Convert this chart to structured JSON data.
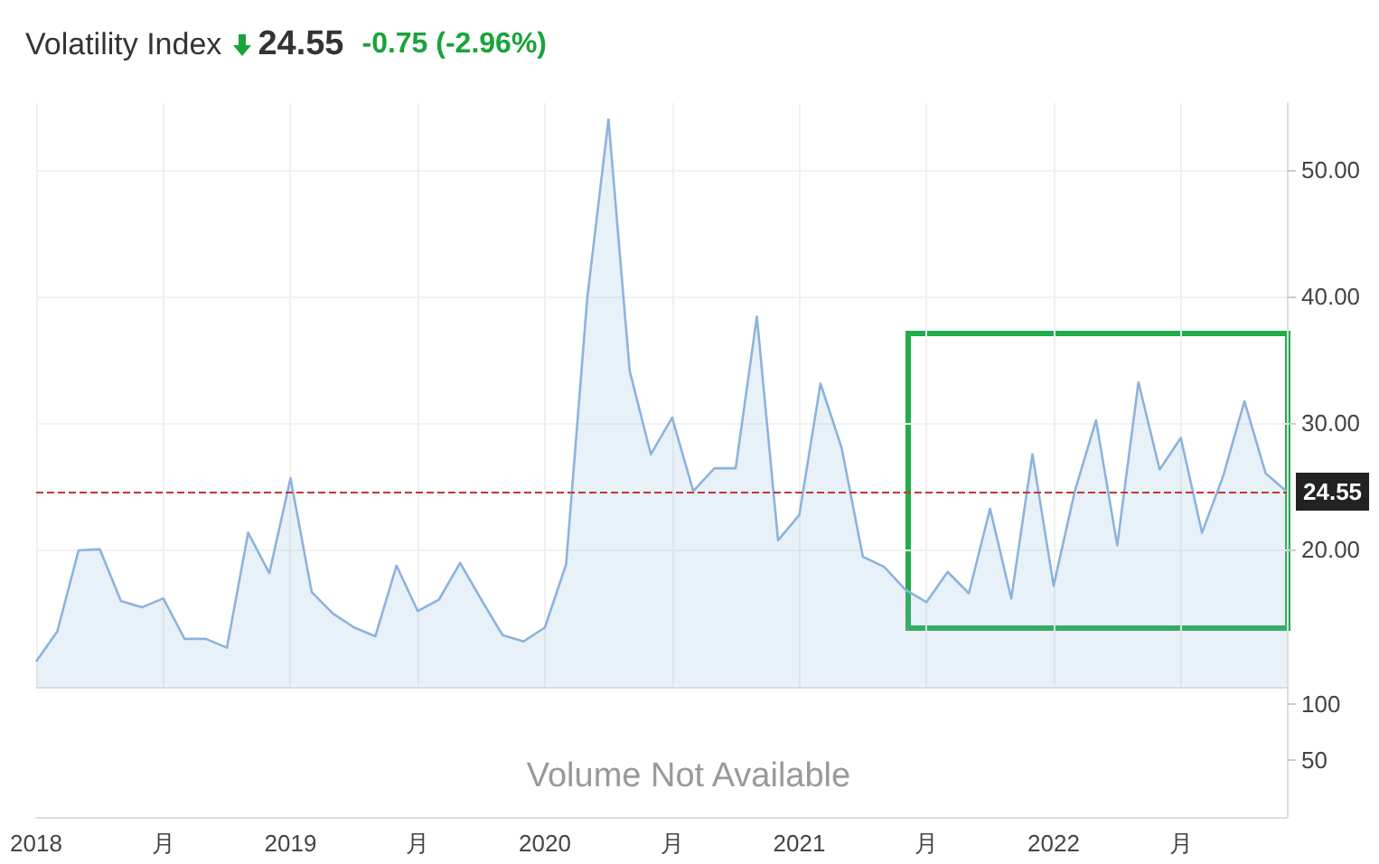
{
  "chart_data": [
    {
      "type": "area",
      "title": "Volatility Index",
      "annotations": [
        "24.55",
        "-0.75 (-2.96%)"
      ],
      "categories": [
        "2018",
        null,
        null,
        null,
        null,
        null,
        "月",
        null,
        null,
        null,
        null,
        null,
        "2019",
        null,
        null,
        null,
        null,
        null,
        "月",
        null,
        null,
        null,
        null,
        null,
        "2020",
        null,
        null,
        null,
        null,
        null,
        "月",
        null,
        null,
        null,
        null,
        null,
        "2021",
        null,
        null,
        null,
        null,
        null,
        "月",
        null,
        null,
        null,
        null,
        null,
        "2022",
        null,
        null,
        null,
        null,
        null,
        "月",
        null,
        null,
        null,
        null,
        null
      ],
      "series": [
        {
          "color": "#8db3dc",
          "values": [
            11.1,
            13.5,
            19.9,
            20.0,
            15.9,
            15.4,
            16.1,
            12.9,
            12.9,
            12.2,
            21.3,
            18.1,
            25.6,
            16.6,
            14.9,
            13.8,
            13.1,
            18.7,
            15.1,
            16.0,
            18.9,
            16.0,
            13.2,
            12.7,
            13.8,
            18.8,
            39.9,
            54.0,
            34.1,
            27.5,
            30.4,
            24.6,
            26.4,
            26.4,
            38.4,
            20.7,
            22.7,
            33.1,
            28.0,
            19.4,
            18.6,
            16.8,
            15.8,
            18.2,
            16.5,
            23.2,
            16.1,
            27.5,
            17.1,
            24.6,
            30.2,
            20.3,
            33.2,
            26.3,
            28.8,
            21.3,
            25.8,
            31.7,
            26.0,
            24.55
          ]
        }
      ],
      "ylim": [
        9.1,
        55.3
      ],
      "yticks": [
        {
          "value": 20,
          "label": "20.00"
        },
        {
          "value": 30,
          "label": "30.00"
        },
        {
          "value": 40,
          "label": "40.00"
        },
        {
          "value": 50,
          "label": "50.00"
        }
      ],
      "ref_lines": [
        {
          "axis": "y",
          "value": 24.55,
          "label": "24.55",
          "color": "#c0392b",
          "line_style": "dashed"
        }
      ],
      "grid": true
    },
    {
      "type": "bar",
      "annotations": [
        "Volume Not Available"
      ],
      "categories": [
        null,
        null,
        null,
        null,
        null,
        null,
        null,
        null,
        null,
        null,
        null,
        null,
        null,
        null,
        null,
        null,
        null,
        null,
        null,
        null,
        null,
        null,
        null,
        null,
        null,
        null,
        null,
        null,
        null,
        null,
        null,
        null,
        null,
        null,
        null,
        null,
        null,
        null,
        null,
        null,
        null,
        null,
        null,
        null,
        null,
        null,
        null,
        null,
        null,
        null,
        null,
        null,
        null,
        null,
        null,
        null,
        null,
        null,
        null,
        null
      ],
      "values": [
        null,
        null,
        null,
        null,
        null,
        null,
        null,
        null,
        null,
        null,
        null,
        null,
        null,
        null,
        null,
        null,
        null,
        null,
        null,
        null,
        null,
        null,
        null,
        null,
        null,
        null,
        null,
        null,
        null,
        null,
        null,
        null,
        null,
        null,
        null,
        null,
        null,
        null,
        null,
        null,
        null,
        null,
        null,
        null,
        null,
        null,
        null,
        null,
        null,
        null,
        null,
        null,
        null,
        null,
        null,
        null,
        null,
        null,
        null,
        null
      ],
      "ylim": [
        0,
        115
      ],
      "yticks": [
        50,
        100
      ],
      "tick_labels": "y"
    }
  ]
}
